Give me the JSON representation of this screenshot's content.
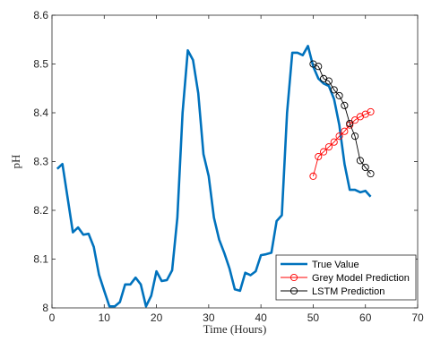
{
  "chart_data": {
    "type": "line",
    "title": "",
    "xlabel": "Time (Hours)",
    "ylabel": "pH",
    "xlim": [
      0,
      70
    ],
    "ylim": [
      8.0,
      8.6
    ],
    "xticks": [
      0,
      10,
      20,
      30,
      40,
      50,
      60,
      70
    ],
    "yticks": [
      8.0,
      8.1,
      8.2,
      8.3,
      8.4,
      8.5,
      8.6
    ],
    "ytick_labels": [
      "8",
      "8.1",
      "8.2",
      "8.3",
      "8.4",
      "8.5",
      "8.6"
    ],
    "grid": false,
    "legend_position": "bottom-right",
    "series": [
      {
        "name": "True Value",
        "color": "#0072BD",
        "marker": "none",
        "x": [
          1,
          2,
          3,
          4,
          5,
          6,
          7,
          8,
          9,
          10,
          11,
          12,
          13,
          14,
          15,
          16,
          17,
          18,
          19,
          20,
          21,
          22,
          23,
          24,
          25,
          26,
          27,
          28,
          29,
          30,
          31,
          32,
          33,
          34,
          35,
          36,
          37,
          38,
          39,
          40,
          41,
          42,
          43,
          44,
          45,
          46,
          47,
          48,
          49,
          50,
          51,
          52,
          53,
          54,
          55,
          56,
          57,
          58,
          59,
          60,
          61
        ],
        "y": [
          8.285,
          8.295,
          8.225,
          8.155,
          8.165,
          8.15,
          8.152,
          8.125,
          8.068,
          8.035,
          8.003,
          8.003,
          8.012,
          8.048,
          8.048,
          8.062,
          8.048,
          8.003,
          8.025,
          8.075,
          8.055,
          8.057,
          8.077,
          8.185,
          8.4,
          8.528,
          8.508,
          8.44,
          8.315,
          8.27,
          8.185,
          8.14,
          8.112,
          8.08,
          8.038,
          8.035,
          8.072,
          8.067,
          8.075,
          8.108,
          8.11,
          8.113,
          8.178,
          8.19,
          8.4,
          8.523,
          8.523,
          8.518,
          8.537,
          8.495,
          8.47,
          8.46,
          8.455,
          8.428,
          8.375,
          8.295,
          8.242,
          8.242,
          8.237,
          8.24,
          8.228
        ]
      },
      {
        "name": "Grey Model Prediction",
        "color": "#FF0000",
        "marker": "circle",
        "x": [
          50,
          51,
          52,
          53,
          54,
          55,
          56,
          57,
          58,
          59,
          60,
          61
        ],
        "y": [
          8.27,
          8.31,
          8.32,
          8.33,
          8.34,
          8.352,
          8.362,
          8.375,
          8.385,
          8.392,
          8.397,
          8.402
        ]
      },
      {
        "name": "LSTM Prediction",
        "color": "#000000",
        "marker": "circle",
        "x": [
          50,
          51,
          52,
          53,
          54,
          55,
          56,
          57,
          58,
          59,
          60,
          61
        ],
        "y": [
          8.5,
          8.495,
          8.47,
          8.465,
          8.447,
          8.435,
          8.415,
          8.378,
          8.352,
          8.302,
          8.288,
          8.275
        ]
      }
    ]
  }
}
